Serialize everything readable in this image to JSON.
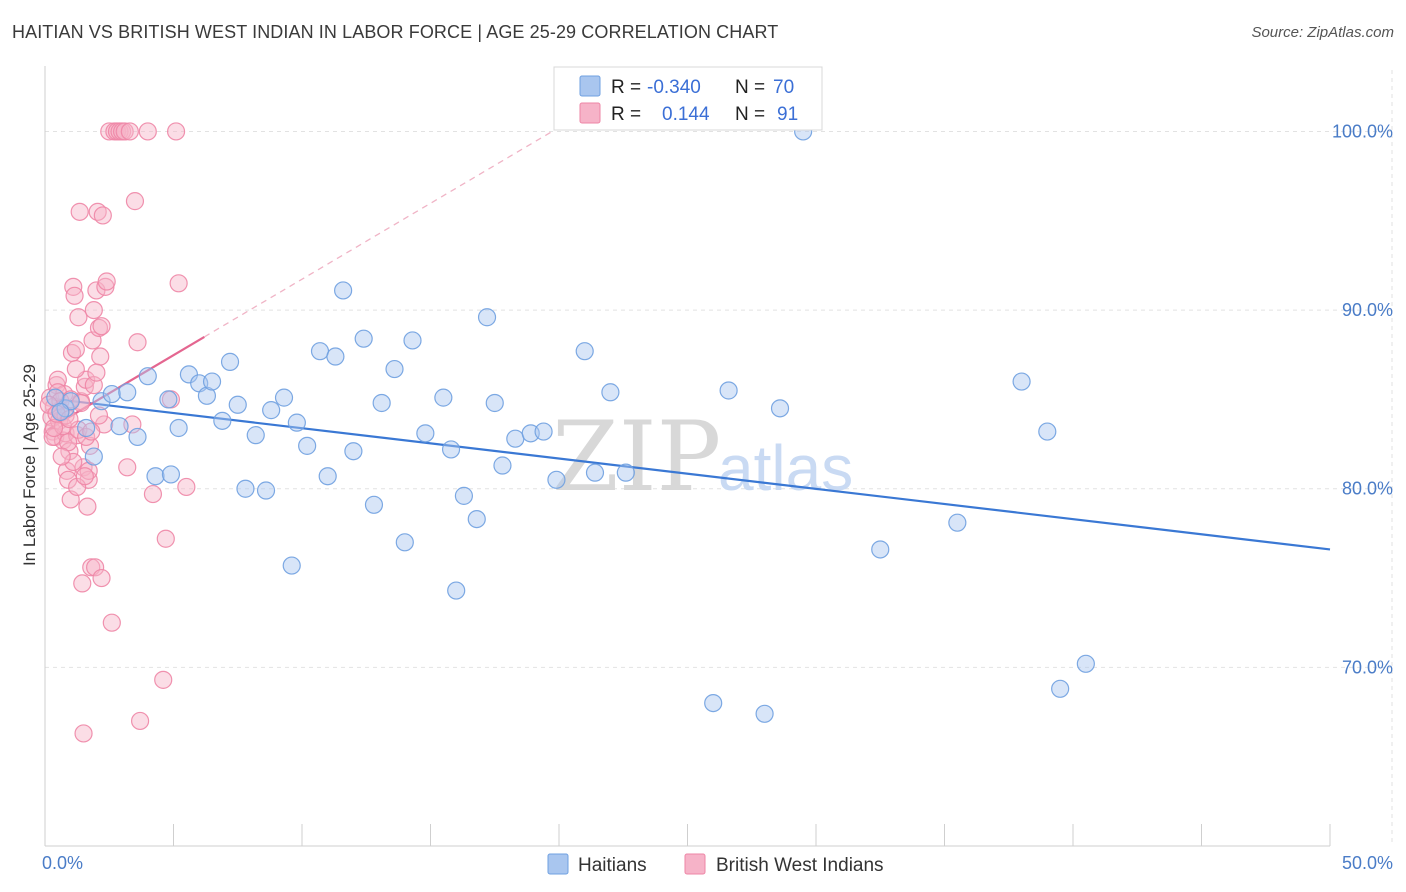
{
  "header": {
    "title": "HAITIAN VS BRITISH WEST INDIAN IN LABOR FORCE | AGE 25-29 CORRELATION CHART",
    "source": "Source: ZipAtlas.com"
  },
  "watermark": {
    "zip": "ZIP",
    "atlas": "atlas"
  },
  "legend_top": {
    "r_label": "R =",
    "n_label": "N =",
    "rows": [
      {
        "r": "-0.340",
        "n": "70",
        "color": "#a9c6ef"
      },
      {
        "r": "0.144",
        "n": "91",
        "color": "#f6b3c8"
      }
    ]
  },
  "legend_bottom": [
    {
      "label": "Haitians",
      "color": "#a9c6ef"
    },
    {
      "label": "British West Indians",
      "color": "#f6b3c8"
    }
  ],
  "chart_data": {
    "type": "scatter",
    "title": "HAITIAN VS BRITISH WEST INDIAN IN LABOR FORCE | AGE 25-29 CORRELATION CHART",
    "xlabel": "",
    "ylabel": "In Labor Force | Age 25-29",
    "xlim": [
      0,
      50
    ],
    "ylim": [
      60,
      104
    ],
    "x_tick_labels": [
      "0.0%",
      "50.0%"
    ],
    "y_ticks": [
      70,
      80,
      90,
      100
    ],
    "y_tick_labels": [
      "70.0%",
      "80.0%",
      "90.0%",
      "100.0%"
    ],
    "grid": true,
    "series": [
      {
        "name": "Haitians",
        "color": "#6fa0e0",
        "fill": "#a9c6ef",
        "trend": {
          "x": [
            0.5,
            50
          ],
          "y": [
            85.0,
            76.6
          ],
          "color": "#3a78d4"
        },
        "points": [
          [
            0.8,
            84.5
          ],
          [
            1.0,
            84.9
          ],
          [
            1.6,
            83.4
          ],
          [
            1.9,
            81.8
          ],
          [
            2.2,
            84.9
          ],
          [
            2.6,
            85.3
          ],
          [
            2.9,
            83.5
          ],
          [
            3.2,
            85.4
          ],
          [
            3.6,
            82.9
          ],
          [
            4.0,
            86.3
          ],
          [
            4.3,
            80.7
          ],
          [
            4.8,
            85.0
          ],
          [
            4.9,
            80.8
          ],
          [
            5.2,
            83.4
          ],
          [
            5.6,
            86.4
          ],
          [
            6.0,
            85.9
          ],
          [
            6.3,
            85.2
          ],
          [
            6.5,
            86.0
          ],
          [
            6.9,
            83.8
          ],
          [
            7.2,
            87.1
          ],
          [
            7.5,
            84.7
          ],
          [
            7.8,
            80.0
          ],
          [
            8.2,
            83.0
          ],
          [
            8.6,
            79.9
          ],
          [
            8.8,
            84.4
          ],
          [
            9.3,
            85.1
          ],
          [
            9.6,
            75.7
          ],
          [
            9.8,
            83.7
          ],
          [
            10.2,
            82.4
          ],
          [
            10.7,
            87.7
          ],
          [
            11.0,
            80.7
          ],
          [
            11.3,
            87.4
          ],
          [
            11.6,
            91.1
          ],
          [
            12.0,
            82.1
          ],
          [
            12.4,
            88.4
          ],
          [
            12.8,
            79.1
          ],
          [
            13.1,
            84.8
          ],
          [
            13.6,
            86.7
          ],
          [
            14.0,
            77.0
          ],
          [
            14.3,
            88.3
          ],
          [
            14.8,
            83.1
          ],
          [
            15.5,
            85.1
          ],
          [
            15.8,
            82.2
          ],
          [
            16.0,
            74.3
          ],
          [
            16.3,
            79.6
          ],
          [
            16.8,
            78.3
          ],
          [
            17.2,
            89.6
          ],
          [
            17.5,
            84.8
          ],
          [
            17.8,
            81.3
          ],
          [
            18.3,
            82.8
          ],
          [
            18.9,
            83.1
          ],
          [
            19.4,
            83.2
          ],
          [
            19.9,
            80.5
          ],
          [
            21.0,
            87.7
          ],
          [
            21.4,
            80.9
          ],
          [
            22.0,
            85.4
          ],
          [
            22.6,
            80.9
          ],
          [
            26.0,
            68.0
          ],
          [
            26.6,
            85.5
          ],
          [
            28.0,
            67.4
          ],
          [
            28.6,
            84.5
          ],
          [
            29.5,
            100.0
          ],
          [
            32.5,
            76.6
          ],
          [
            35.5,
            78.1
          ],
          [
            38.0,
            86.0
          ],
          [
            39.0,
            83.2
          ],
          [
            39.5,
            68.8
          ],
          [
            40.5,
            70.2
          ],
          [
            0.4,
            85.1
          ],
          [
            0.6,
            84.3
          ]
        ]
      },
      {
        "name": "British West Indians",
        "color": "#ee86a6",
        "fill": "#f6b3c8",
        "trend": {
          "x": [
            0.1,
            6.2
          ],
          "y": [
            83.3,
            88.5
          ],
          "color": "#e46690"
        },
        "trend_dashed": {
          "x": [
            6.2,
            21.5
          ],
          "y": [
            88.5,
            101.5
          ],
          "color": "#f0b4c6"
        },
        "points": [
          [
            0.2,
            85.1
          ],
          [
            0.25,
            84.0
          ],
          [
            0.3,
            83.2
          ],
          [
            0.35,
            84.6
          ],
          [
            0.4,
            82.9
          ],
          [
            0.45,
            85.8
          ],
          [
            0.5,
            86.1
          ],
          [
            0.55,
            83.8
          ],
          [
            0.6,
            84.4
          ],
          [
            0.7,
            82.7
          ],
          [
            0.75,
            85.3
          ],
          [
            0.8,
            83.1
          ],
          [
            0.85,
            81.0
          ],
          [
            0.9,
            80.5
          ],
          [
            0.95,
            82.1
          ],
          [
            1.0,
            79.4
          ],
          [
            1.05,
            87.6
          ],
          [
            1.1,
            91.3
          ],
          [
            1.15,
            90.8
          ],
          [
            1.2,
            87.8
          ],
          [
            1.25,
            83.0
          ],
          [
            1.3,
            89.6
          ],
          [
            1.35,
            95.5
          ],
          [
            1.4,
            84.9
          ],
          [
            1.45,
            74.7
          ],
          [
            1.5,
            81.2
          ],
          [
            1.55,
            85.7
          ],
          [
            1.6,
            86.1
          ],
          [
            1.65,
            79.0
          ],
          [
            1.7,
            80.5
          ],
          [
            1.75,
            82.4
          ],
          [
            1.8,
            75.6
          ],
          [
            1.85,
            88.3
          ],
          [
            1.9,
            90.0
          ],
          [
            1.95,
            75.6
          ],
          [
            2.0,
            91.1
          ],
          [
            2.05,
            95.5
          ],
          [
            2.1,
            89.0
          ],
          [
            2.15,
            87.4
          ],
          [
            2.2,
            75.0
          ],
          [
            2.25,
            95.3
          ],
          [
            2.3,
            83.6
          ],
          [
            2.35,
            91.3
          ],
          [
            2.4,
            91.6
          ],
          [
            2.5,
            100.0
          ],
          [
            2.6,
            72.5
          ],
          [
            2.7,
            100.0
          ],
          [
            2.8,
            100.0
          ],
          [
            2.9,
            100.0
          ],
          [
            3.0,
            100.0
          ],
          [
            3.1,
            100.0
          ],
          [
            3.2,
            81.2
          ],
          [
            3.3,
            100.0
          ],
          [
            3.4,
            83.6
          ],
          [
            3.5,
            96.1
          ],
          [
            3.6,
            88.2
          ],
          [
            3.7,
            67.0
          ],
          [
            4.0,
            100.0
          ],
          [
            4.2,
            79.7
          ],
          [
            4.6,
            69.3
          ],
          [
            4.7,
            77.2
          ],
          [
            4.9,
            85.0
          ],
          [
            5.1,
            100.0
          ],
          [
            5.2,
            91.5
          ],
          [
            5.5,
            80.1
          ],
          [
            0.3,
            82.9
          ],
          [
            0.5,
            85.4
          ],
          [
            0.6,
            84.9
          ],
          [
            0.7,
            83.5
          ],
          [
            0.8,
            84.1
          ],
          [
            0.9,
            82.6
          ],
          [
            1.0,
            85.0
          ],
          [
            1.1,
            81.5
          ],
          [
            1.2,
            86.7
          ],
          [
            1.3,
            83.3
          ],
          [
            1.4,
            84.8
          ],
          [
            1.5,
            66.3
          ],
          [
            1.6,
            82.9
          ],
          [
            1.7,
            81.0
          ],
          [
            1.8,
            83.2
          ],
          [
            1.9,
            85.8
          ],
          [
            2.0,
            86.5
          ],
          [
            2.1,
            84.1
          ],
          [
            2.2,
            89.1
          ],
          [
            0.15,
            84.7
          ],
          [
            0.35,
            83.4
          ],
          [
            0.45,
            84.2
          ],
          [
            0.65,
            81.8
          ],
          [
            0.95,
            83.9
          ],
          [
            1.25,
            80.1
          ],
          [
            1.55,
            80.7
          ]
        ]
      }
    ]
  }
}
